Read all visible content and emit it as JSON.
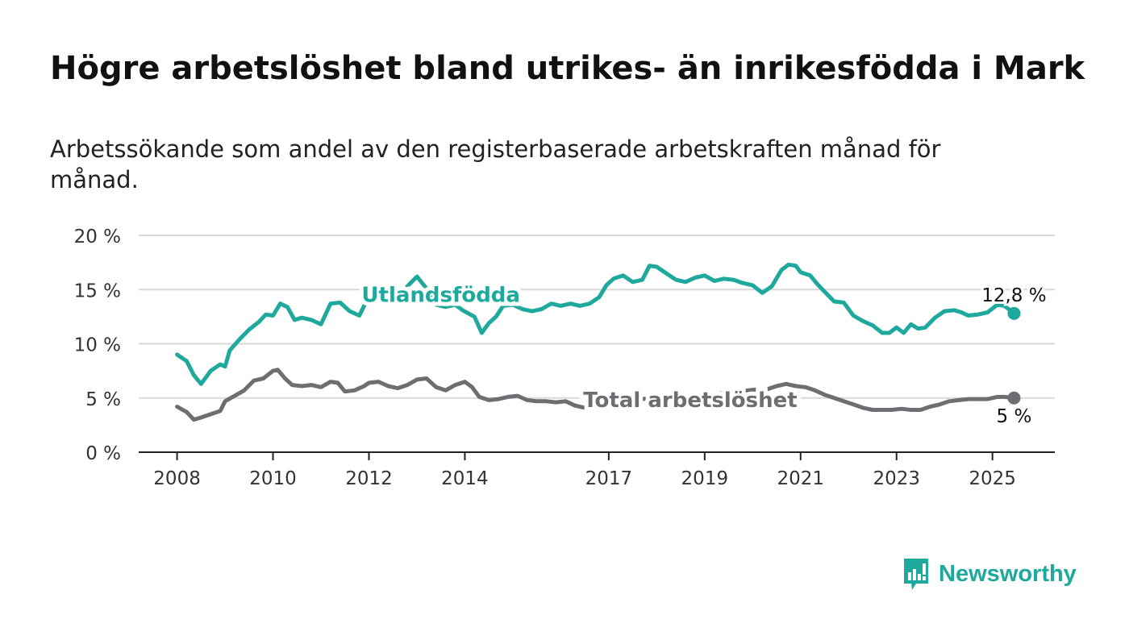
{
  "title": "Högre arbetslöshet bland utrikes- än inrikesfödda i Mark",
  "subtitle": "Arbetssökande som andel av den registerbaserade arbetskraften månad för månad.",
  "brand": {
    "name": "Newsworthy",
    "icon": "newsworthy-logo-icon",
    "color": "#1fa89c"
  },
  "chart_data": {
    "type": "line",
    "ylim": [
      0,
      20
    ],
    "xlim": [
      2007.2,
      2026.3
    ],
    "yticks": [
      {
        "value": 0,
        "label": "0 %"
      },
      {
        "value": 5,
        "label": "5 %"
      },
      {
        "value": 10,
        "label": "10 %"
      },
      {
        "value": 15,
        "label": "15 %"
      },
      {
        "value": 20,
        "label": "20 %"
      }
    ],
    "xticks": [
      {
        "value": 2008,
        "label": "2008"
      },
      {
        "value": 2010,
        "label": "2010"
      },
      {
        "value": 2012,
        "label": "2012"
      },
      {
        "value": 2014,
        "label": "2014"
      },
      {
        "value": 2017,
        "label": "2017"
      },
      {
        "value": 2019,
        "label": "2019"
      },
      {
        "value": 2021,
        "label": "2021"
      },
      {
        "value": 2023,
        "label": "2023"
      },
      {
        "value": 2025,
        "label": "2025"
      }
    ],
    "grid": true,
    "series": [
      {
        "name": "Utlandsfödda",
        "color": "#1fa89c",
        "end_label": "12,8 %",
        "points": [
          [
            2008.0,
            9.0
          ],
          [
            2008.2,
            8.4
          ],
          [
            2008.35,
            7.1
          ],
          [
            2008.5,
            6.3
          ],
          [
            2008.7,
            7.5
          ],
          [
            2008.9,
            8.1
          ],
          [
            2009.0,
            7.9
          ],
          [
            2009.1,
            9.4
          ],
          [
            2009.3,
            10.4
          ],
          [
            2009.5,
            11.3
          ],
          [
            2009.7,
            12.0
          ],
          [
            2009.85,
            12.7
          ],
          [
            2010.0,
            12.6
          ],
          [
            2010.15,
            13.7
          ],
          [
            2010.3,
            13.4
          ],
          [
            2010.45,
            12.2
          ],
          [
            2010.6,
            12.4
          ],
          [
            2010.8,
            12.2
          ],
          [
            2011.0,
            11.8
          ],
          [
            2011.2,
            13.7
          ],
          [
            2011.4,
            13.8
          ],
          [
            2011.6,
            13.0
          ],
          [
            2011.8,
            12.6
          ],
          [
            2012.0,
            14.4
          ],
          [
            2012.1,
            15.3
          ],
          [
            2012.25,
            14.3
          ],
          [
            2012.4,
            13.9
          ],
          [
            2012.6,
            14.2
          ],
          [
            2012.8,
            15.3
          ],
          [
            2013.0,
            16.2
          ],
          [
            2013.2,
            15.1
          ],
          [
            2013.4,
            13.6
          ],
          [
            2013.6,
            13.4
          ],
          [
            2013.8,
            13.6
          ],
          [
            2013.95,
            13.1
          ],
          [
            2014.2,
            12.5
          ],
          [
            2014.35,
            11.0
          ],
          [
            2014.5,
            11.9
          ],
          [
            2014.65,
            12.5
          ],
          [
            2014.8,
            13.5
          ],
          [
            2015.0,
            13.6
          ],
          [
            2015.2,
            13.2
          ],
          [
            2015.4,
            13.0
          ],
          [
            2015.6,
            13.2
          ],
          [
            2015.8,
            13.7
          ],
          [
            2016.0,
            13.5
          ],
          [
            2016.2,
            13.7
          ],
          [
            2016.4,
            13.5
          ],
          [
            2016.6,
            13.7
          ],
          [
            2016.8,
            14.3
          ],
          [
            2016.95,
            15.4
          ],
          [
            2017.1,
            16.0
          ],
          [
            2017.3,
            16.3
          ],
          [
            2017.5,
            15.7
          ],
          [
            2017.7,
            15.9
          ],
          [
            2017.85,
            17.2
          ],
          [
            2018.0,
            17.1
          ],
          [
            2018.2,
            16.5
          ],
          [
            2018.4,
            15.9
          ],
          [
            2018.6,
            15.7
          ],
          [
            2018.8,
            16.1
          ],
          [
            2019.0,
            16.3
          ],
          [
            2019.2,
            15.8
          ],
          [
            2019.4,
            16.0
          ],
          [
            2019.6,
            15.9
          ],
          [
            2019.8,
            15.6
          ],
          [
            2020.0,
            15.4
          ],
          [
            2020.2,
            14.7
          ],
          [
            2020.4,
            15.3
          ],
          [
            2020.6,
            16.8
          ],
          [
            2020.75,
            17.3
          ],
          [
            2020.9,
            17.2
          ],
          [
            2021.0,
            16.6
          ],
          [
            2021.2,
            16.3
          ],
          [
            2021.35,
            15.5
          ],
          [
            2021.5,
            14.8
          ],
          [
            2021.7,
            13.9
          ],
          [
            2021.9,
            13.8
          ],
          [
            2022.1,
            12.6
          ],
          [
            2022.3,
            12.1
          ],
          [
            2022.5,
            11.7
          ],
          [
            2022.7,
            11.0
          ],
          [
            2022.85,
            11.0
          ],
          [
            2023.0,
            11.5
          ],
          [
            2023.15,
            11.0
          ],
          [
            2023.3,
            11.8
          ],
          [
            2023.45,
            11.4
          ],
          [
            2023.6,
            11.5
          ],
          [
            2023.8,
            12.4
          ],
          [
            2024.0,
            13.0
          ],
          [
            2024.2,
            13.1
          ],
          [
            2024.35,
            12.9
          ],
          [
            2024.5,
            12.6
          ],
          [
            2024.7,
            12.7
          ],
          [
            2024.9,
            12.9
          ],
          [
            2025.1,
            13.6
          ],
          [
            2025.25,
            13.5
          ],
          [
            2025.45,
            12.8
          ]
        ]
      },
      {
        "name": "Total arbetslöshet",
        "color": "#6e6d72",
        "end_label": "5 %",
        "points": [
          [
            2008.0,
            4.2
          ],
          [
            2008.2,
            3.7
          ],
          [
            2008.35,
            3.0
          ],
          [
            2008.5,
            3.2
          ],
          [
            2008.7,
            3.5
          ],
          [
            2008.9,
            3.8
          ],
          [
            2009.0,
            4.7
          ],
          [
            2009.2,
            5.2
          ],
          [
            2009.4,
            5.7
          ],
          [
            2009.6,
            6.6
          ],
          [
            2009.8,
            6.8
          ],
          [
            2010.0,
            7.5
          ],
          [
            2010.1,
            7.6
          ],
          [
            2010.25,
            6.8
          ],
          [
            2010.4,
            6.2
          ],
          [
            2010.6,
            6.1
          ],
          [
            2010.8,
            6.2
          ],
          [
            2011.0,
            6.0
          ],
          [
            2011.2,
            6.5
          ],
          [
            2011.35,
            6.4
          ],
          [
            2011.5,
            5.6
          ],
          [
            2011.7,
            5.7
          ],
          [
            2011.9,
            6.1
          ],
          [
            2012.0,
            6.4
          ],
          [
            2012.2,
            6.5
          ],
          [
            2012.4,
            6.1
          ],
          [
            2012.6,
            5.9
          ],
          [
            2012.8,
            6.2
          ],
          [
            2013.0,
            6.7
          ],
          [
            2013.2,
            6.8
          ],
          [
            2013.4,
            6.0
          ],
          [
            2013.6,
            5.7
          ],
          [
            2013.8,
            6.2
          ],
          [
            2014.0,
            6.5
          ],
          [
            2014.15,
            6.0
          ],
          [
            2014.3,
            5.1
          ],
          [
            2014.5,
            4.8
          ],
          [
            2014.7,
            4.9
          ],
          [
            2014.9,
            5.1
          ],
          [
            2015.1,
            5.2
          ],
          [
            2015.3,
            4.8
          ],
          [
            2015.5,
            4.7
          ],
          [
            2015.7,
            4.7
          ],
          [
            2015.9,
            4.6
          ],
          [
            2016.1,
            4.7
          ],
          [
            2016.3,
            4.3
          ],
          [
            2016.5,
            4.1
          ],
          [
            2016.7,
            4.1
          ],
          [
            2016.9,
            4.3
          ],
          [
            2017.1,
            4.5
          ],
          [
            2017.3,
            4.6
          ],
          [
            2017.5,
            4.8
          ],
          [
            2017.7,
            4.9
          ],
          [
            2017.9,
            5.0
          ],
          [
            2018.1,
            5.1
          ],
          [
            2018.3,
            5.1
          ],
          [
            2018.5,
            5.1
          ],
          [
            2018.7,
            5.2
          ],
          [
            2018.9,
            5.3
          ],
          [
            2019.1,
            5.3
          ],
          [
            2019.3,
            5.4
          ],
          [
            2019.5,
            5.5
          ],
          [
            2019.7,
            5.6
          ],
          [
            2019.9,
            5.7
          ],
          [
            2020.1,
            5.8
          ],
          [
            2020.3,
            5.8
          ],
          [
            2020.5,
            6.1
          ],
          [
            2020.7,
            6.3
          ],
          [
            2020.9,
            6.1
          ],
          [
            2021.1,
            6.0
          ],
          [
            2021.3,
            5.7
          ],
          [
            2021.5,
            5.3
          ],
          [
            2021.7,
            5.0
          ],
          [
            2021.9,
            4.7
          ],
          [
            2022.1,
            4.4
          ],
          [
            2022.3,
            4.1
          ],
          [
            2022.5,
            3.9
          ],
          [
            2022.7,
            3.9
          ],
          [
            2022.9,
            3.9
          ],
          [
            2023.1,
            4.0
          ],
          [
            2023.3,
            3.9
          ],
          [
            2023.5,
            3.9
          ],
          [
            2023.7,
            4.2
          ],
          [
            2023.9,
            4.4
          ],
          [
            2024.1,
            4.7
          ],
          [
            2024.3,
            4.8
          ],
          [
            2024.5,
            4.9
          ],
          [
            2024.7,
            4.9
          ],
          [
            2024.9,
            4.9
          ],
          [
            2025.1,
            5.1
          ],
          [
            2025.25,
            5.1
          ],
          [
            2025.45,
            5.0
          ]
        ]
      }
    ],
    "inline_labels": [
      {
        "series": "Utlandsfödda",
        "text": "Utlandsfödda",
        "at": [
          2013.5,
          14.6
        ]
      },
      {
        "series": "Total arbetslöshet",
        "text": "Total arbetslöshet",
        "at": [
          2018.7,
          4.9
        ]
      }
    ]
  }
}
